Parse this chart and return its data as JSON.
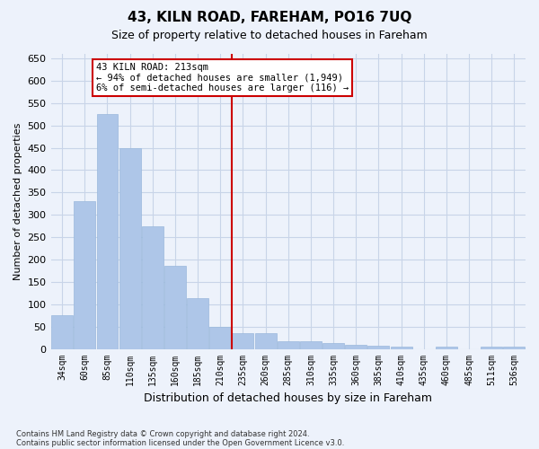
{
  "title1": "43, KILN ROAD, FAREHAM, PO16 7UQ",
  "title2": "Size of property relative to detached houses in Fareham",
  "xlabel": "Distribution of detached houses by size in Fareham",
  "ylabel": "Number of detached properties",
  "footnote1": "Contains HM Land Registry data © Crown copyright and database right 2024.",
  "footnote2": "Contains public sector information licensed under the Open Government Licence v3.0.",
  "annotation_title": "43 KILN ROAD: 213sqm",
  "annotation_line1": "← 94% of detached houses are smaller (1,949)",
  "annotation_line2": "6% of semi-detached houses are larger (116) →",
  "vline_x": 7.5,
  "bar_values": [
    75,
    330,
    525,
    450,
    275,
    185,
    113,
    50,
    35,
    36,
    18,
    18,
    13,
    9,
    8,
    5,
    0,
    5,
    0,
    5,
    5
  ],
  "categories": [
    "34sqm",
    "60sqm",
    "85sqm",
    "110sqm",
    "135sqm",
    "160sqm",
    "185sqm",
    "210sqm",
    "235sqm",
    "260sqm",
    "285sqm",
    "310sqm",
    "335sqm",
    "360sqm",
    "385sqm",
    "410sqm",
    "435sqm",
    "460sqm",
    "485sqm",
    "511sqm",
    "536sqm"
  ],
  "bar_color": "#aec6e8",
  "bar_edge_color": "#9ab8dc",
  "grid_color": "#c8d4e8",
  "bg_color": "#edf2fb",
  "vline_color": "#cc0000",
  "annotation_box_color": "#ffffff",
  "annotation_box_edge": "#cc0000",
  "ylim": [
    0,
    660
  ],
  "yticks": [
    0,
    50,
    100,
    150,
    200,
    250,
    300,
    350,
    400,
    450,
    500,
    550,
    600,
    650
  ]
}
